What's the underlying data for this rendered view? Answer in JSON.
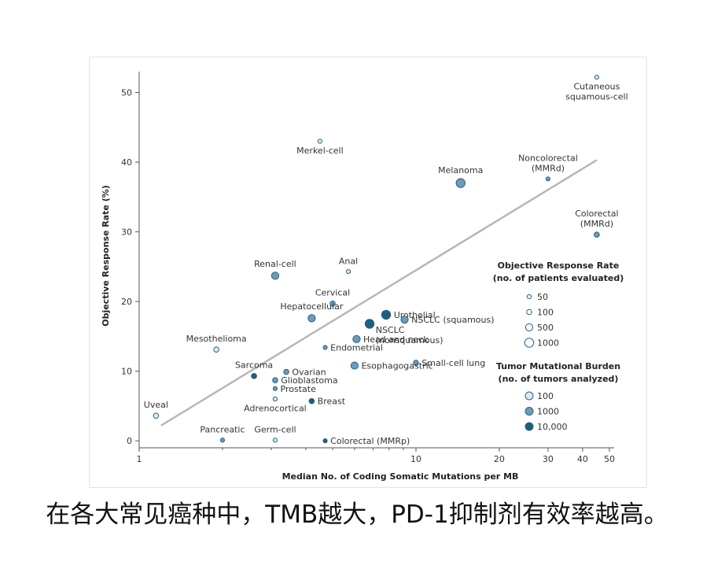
{
  "caption": "在各大常见癌种中，TMB越大，PD-1抑制剂有效率越高。",
  "chart_data": {
    "type": "scatter",
    "xlabel": "Median No. of Coding Somatic Mutations per MB",
    "ylabel": "Objective Response Rate (%)",
    "x_scale": "log",
    "xlim": [
      1,
      52
    ],
    "ylim": [
      -1,
      53
    ],
    "x_ticks": [
      1,
      10,
      20,
      30,
      40,
      50
    ],
    "x_tick_labels": [
      "1",
      "10",
      "20",
      "30",
      "40",
      "50"
    ],
    "x_minor_ticks": [
      2,
      3,
      4,
      5,
      6,
      7,
      8,
      9
    ],
    "y_ticks": [
      0,
      10,
      20,
      30,
      40,
      50
    ],
    "y_tick_labels": [
      "0",
      "10",
      "20",
      "30",
      "40",
      "50"
    ],
    "grid": false,
    "trendline": {
      "x": [
        1.2,
        45
      ],
      "y": [
        2.2,
        40.3
      ],
      "color": "#b7b7b7"
    },
    "colors": {
      "low": "#dceaf3",
      "mid": "#6f9bb8",
      "high": "#1f5f7c",
      "stroke": "#2e607e"
    },
    "points": [
      {
        "label": "Cutaneous squamous-cell",
        "label_lines": [
          "Cutaneous",
          "squamous-cell"
        ],
        "x": 45,
        "y": 52.2,
        "patients": 50,
        "tumors": 100,
        "label_pos": "below"
      },
      {
        "label": "Merkel-cell",
        "label_lines": [
          "Merkel-cell"
        ],
        "x": 4.5,
        "y": 43,
        "patients": 50,
        "tumors": 100,
        "label_pos": "below"
      },
      {
        "label": "Noncolorectal (MMRd)",
        "label_lines": [
          "Noncolorectal",
          "(MMRd)"
        ],
        "x": 30,
        "y": 37.6,
        "patients": 50,
        "tumors": 1000,
        "label_pos": "above"
      },
      {
        "label": "Melanoma",
        "label_lines": [
          "Melanoma"
        ],
        "x": 14.5,
        "y": 37,
        "patients": 1000,
        "tumors": 1000,
        "label_pos": "above"
      },
      {
        "label": "Colorectal (MMRd)",
        "label_lines": [
          "Colorectal",
          "(MMRd)"
        ],
        "x": 45,
        "y": 29.6,
        "patients": 100,
        "tumors": 1000,
        "label_pos": "above"
      },
      {
        "label": "Renal-cell",
        "label_lines": [
          "Renal-cell"
        ],
        "x": 3.1,
        "y": 23.7,
        "patients": 500,
        "tumors": 1000,
        "label_pos": "above"
      },
      {
        "label": "Anal",
        "label_lines": [
          "Anal"
        ],
        "x": 5.7,
        "y": 24.3,
        "patients": 50,
        "tumors": 100,
        "label_pos": "above"
      },
      {
        "label": "Cervical",
        "label_lines": [
          "Cervical"
        ],
        "x": 5.0,
        "y": 19.7,
        "patients": 100,
        "tumors": 1000,
        "label_pos": "above"
      },
      {
        "label": "Hepatocellular",
        "label_lines": [
          "Hepatocellular"
        ],
        "x": 4.2,
        "y": 17.6,
        "patients": 500,
        "tumors": 1000,
        "label_pos": "above"
      },
      {
        "label": "Urothelial",
        "label_lines": [
          "Urothelial"
        ],
        "x": 7.8,
        "y": 18.1,
        "patients": 1000,
        "tumors": 10000,
        "label_pos": "right"
      },
      {
        "label": "NSCLC (squamous)",
        "label_lines": [
          "NSCLC (squamous)"
        ],
        "x": 9.1,
        "y": 17.4,
        "patients": 500,
        "tumors": 1000,
        "label_pos": "right"
      },
      {
        "label": "NSCLC (nonsquamous)",
        "label_lines": [
          "NSCLC",
          "(nonsquamous)"
        ],
        "x": 6.8,
        "y": 16.8,
        "patients": 1000,
        "tumors": 10000,
        "label_pos": "right-down"
      },
      {
        "label": "Head and neck",
        "label_lines": [
          "Head and neck"
        ],
        "x": 6.1,
        "y": 14.6,
        "patients": 500,
        "tumors": 1000,
        "label_pos": "right"
      },
      {
        "label": "Mesothelioma",
        "label_lines": [
          "Mesothelioma"
        ],
        "x": 1.9,
        "y": 13.1,
        "patients": 100,
        "tumors": 100,
        "label_pos": "above"
      },
      {
        "label": "Endometrial",
        "label_lines": [
          "Endometrial"
        ],
        "x": 4.7,
        "y": 13.4,
        "patients": 50,
        "tumors": 1000,
        "label_pos": "right"
      },
      {
        "label": "Small-cell lung",
        "label_lines": [
          "Small-cell lung"
        ],
        "x": 10,
        "y": 11.2,
        "patients": 100,
        "tumors": 1000,
        "label_pos": "right"
      },
      {
        "label": "Esophagogastric",
        "label_lines": [
          "Esophagogastric"
        ],
        "x": 6.0,
        "y": 10.8,
        "patients": 500,
        "tumors": 1000,
        "label_pos": "right"
      },
      {
        "label": "Sarcoma",
        "label_lines": [
          "Sarcoma"
        ],
        "x": 2.6,
        "y": 9.3,
        "patients": 100,
        "tumors": 10000,
        "label_pos": "above"
      },
      {
        "label": "Ovarian",
        "label_lines": [
          "Ovarian"
        ],
        "x": 3.4,
        "y": 9.9,
        "patients": 100,
        "tumors": 1000,
        "label_pos": "right"
      },
      {
        "label": "Glioblastoma",
        "label_lines": [
          "Glioblastoma"
        ],
        "x": 3.1,
        "y": 8.7,
        "patients": 100,
        "tumors": 1000,
        "label_pos": "right"
      },
      {
        "label": "Prostate",
        "label_lines": [
          "Prostate"
        ],
        "x": 3.1,
        "y": 7.5,
        "patients": 50,
        "tumors": 1000,
        "label_pos": "right"
      },
      {
        "label": "Adrenocortical",
        "label_lines": [
          "Adrenocortical"
        ],
        "x": 3.1,
        "y": 6.0,
        "patients": 50,
        "tumors": 100,
        "label_pos": "below"
      },
      {
        "label": "Breast",
        "label_lines": [
          "Breast"
        ],
        "x": 4.2,
        "y": 5.7,
        "patients": 100,
        "tumors": 10000,
        "label_pos": "right"
      },
      {
        "label": "Uveal",
        "label_lines": [
          "Uveal"
        ],
        "x": 1.15,
        "y": 3.6,
        "patients": 100,
        "tumors": 100,
        "label_pos": "above"
      },
      {
        "label": "Pancreatic",
        "label_lines": [
          "Pancreatic"
        ],
        "x": 2.0,
        "y": 0.1,
        "patients": 50,
        "tumors": 1000,
        "label_pos": "above"
      },
      {
        "label": "Germ-cell",
        "label_lines": [
          "Germ-cell"
        ],
        "x": 3.1,
        "y": 0.1,
        "patients": 50,
        "tumors": 100,
        "label_pos": "above"
      },
      {
        "label": "Colorectal (MMRp)",
        "label_lines": [
          "Colorectal (MMRp)"
        ],
        "x": 4.7,
        "y": 0.0,
        "patients": 50,
        "tumors": 10000,
        "label_pos": "right"
      }
    ],
    "legend": {
      "placement": "right",
      "size_title": [
        "Objective Response Rate",
        "(no. of patients evaluated)"
      ],
      "size_entries": [
        {
          "label": "50",
          "value": 50
        },
        {
          "label": "100",
          "value": 100
        },
        {
          "label": "500",
          "value": 500
        },
        {
          "label": "1000",
          "value": 1000
        }
      ],
      "color_title": [
        "Tumor Mutational Burden",
        "(no. of tumors analyzed)"
      ],
      "color_entries": [
        {
          "label": "100",
          "value": 100
        },
        {
          "label": "1000",
          "value": 1000
        },
        {
          "label": "10,000",
          "value": 10000
        }
      ]
    }
  }
}
